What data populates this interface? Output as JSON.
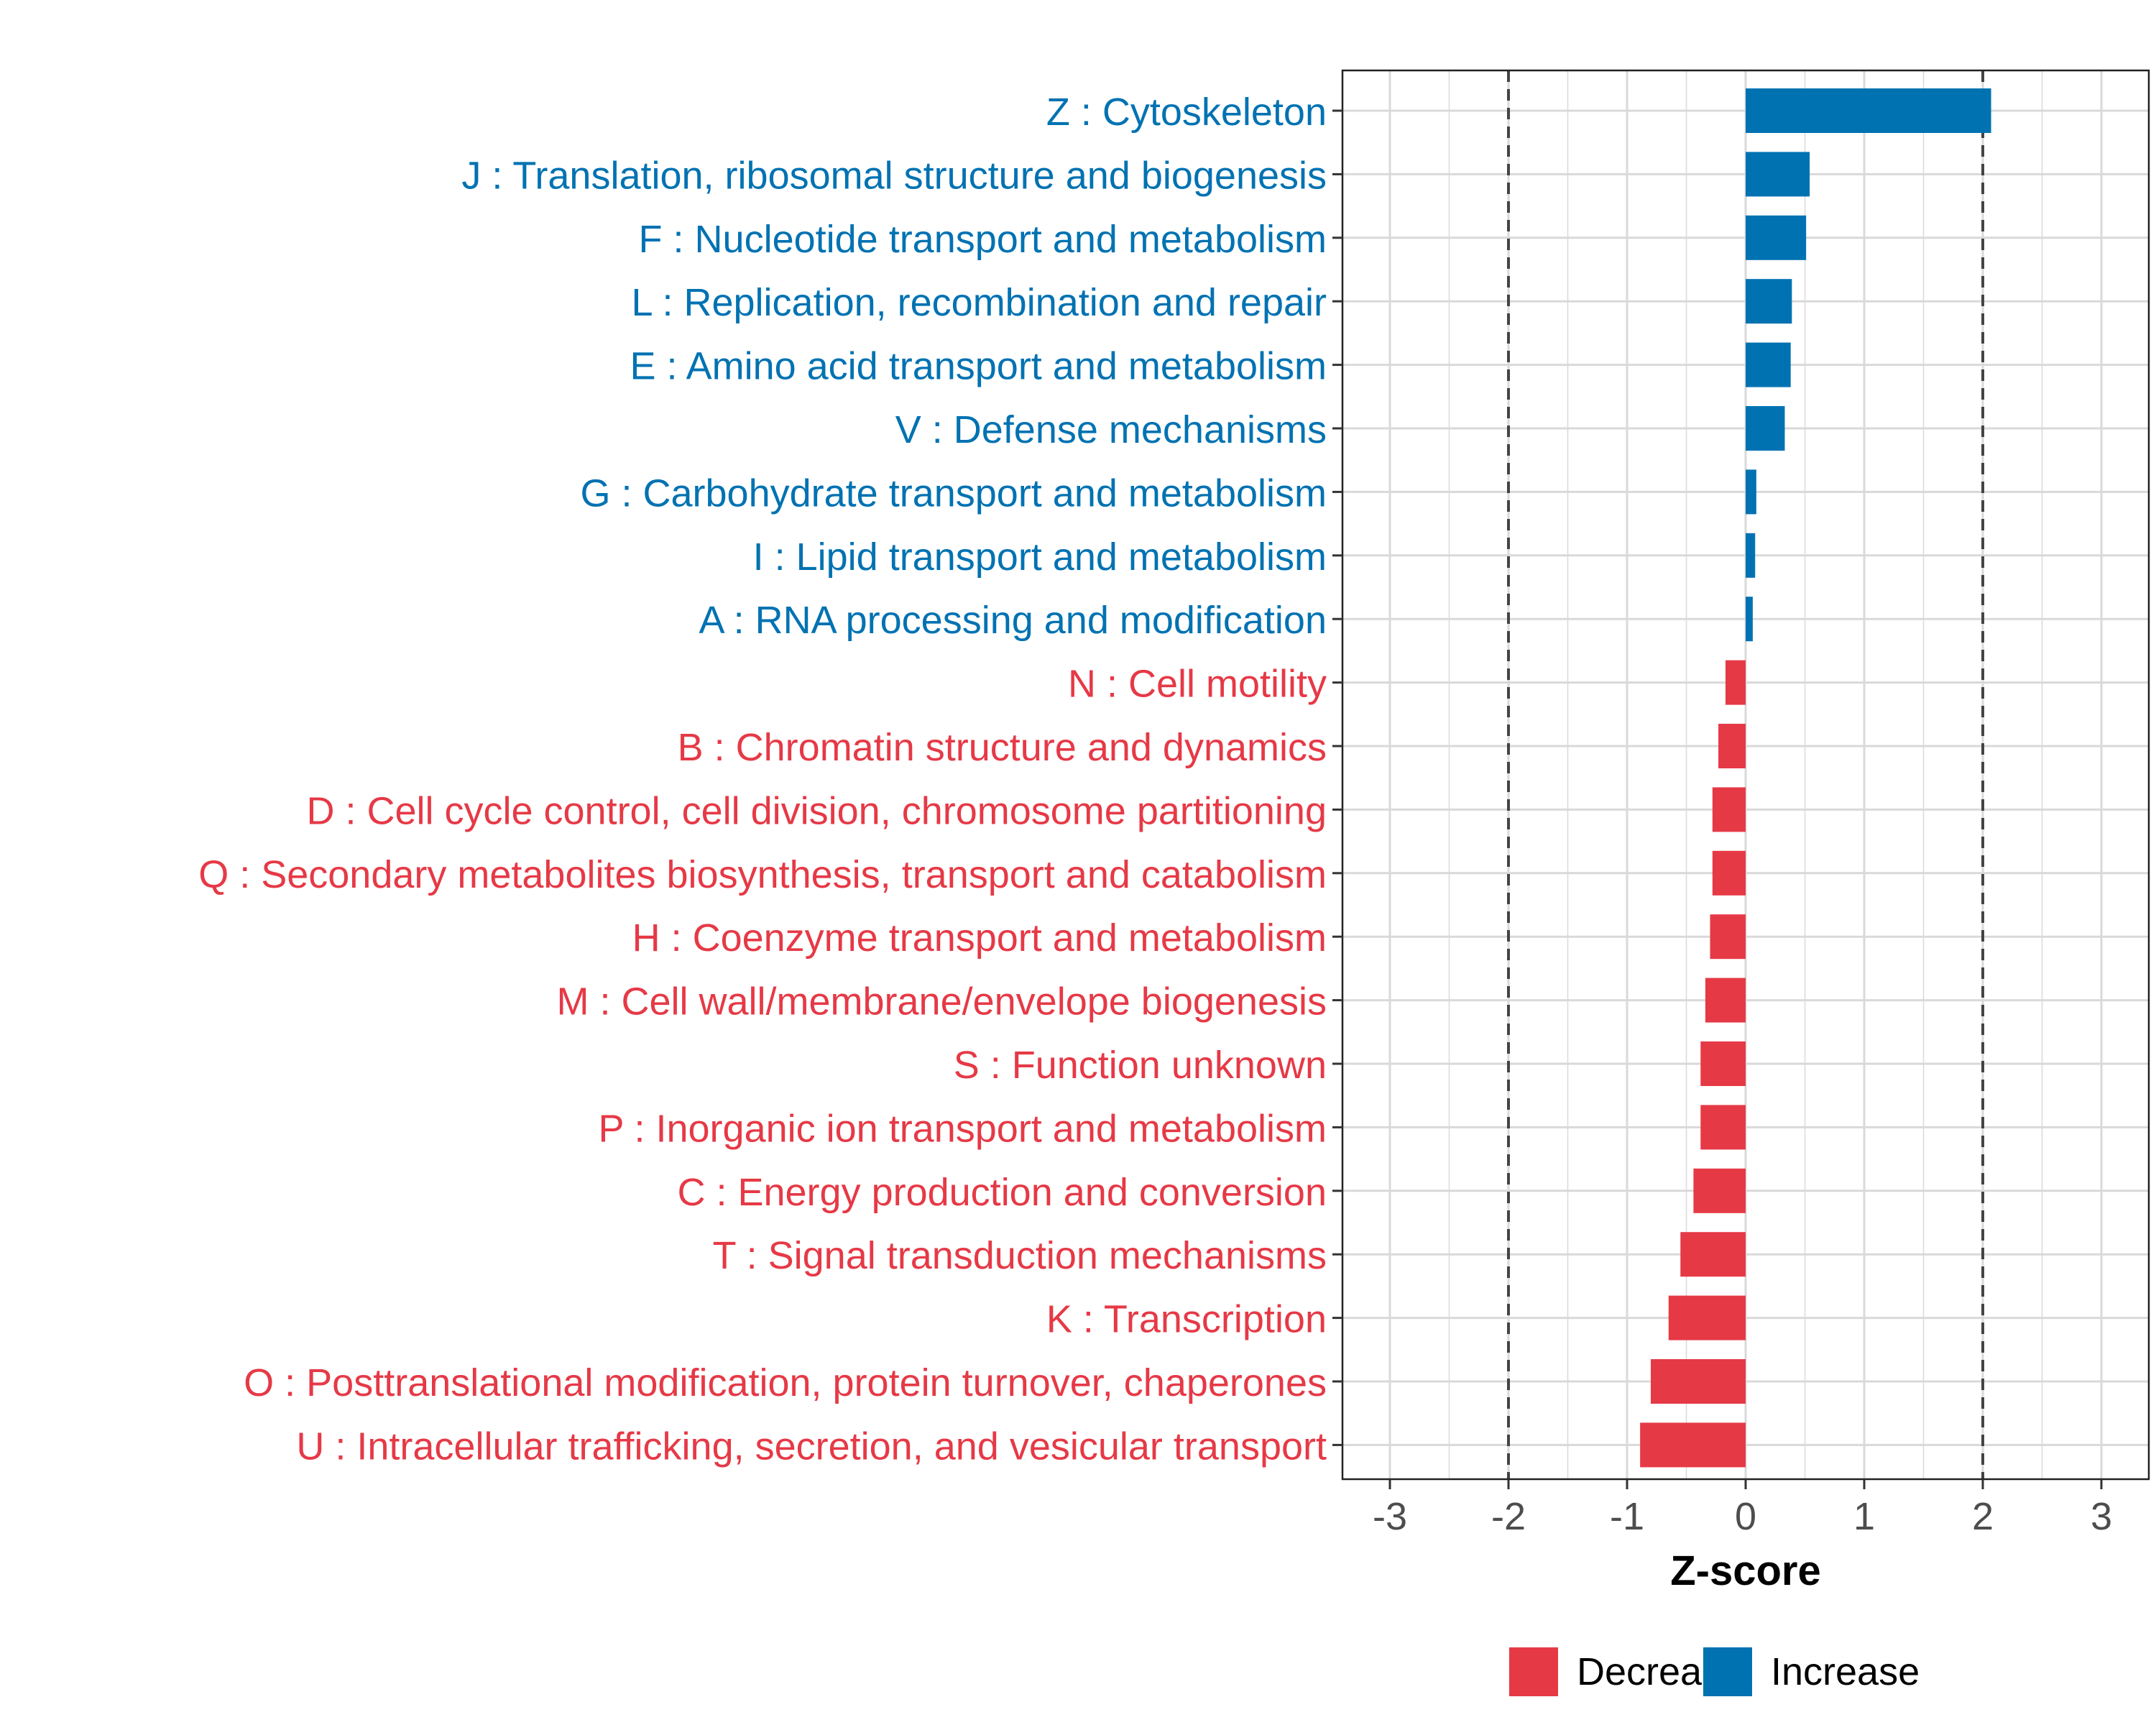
{
  "chart_data": {
    "type": "bar",
    "orientation": "horizontal",
    "title": "",
    "xlabel": "Z-score",
    "ylabel": "",
    "xlim": [
      -3.4,
      3.4
    ],
    "x_ticks": [
      -3,
      -2,
      -1,
      0,
      1,
      2,
      3
    ],
    "x_tick_labels": [
      "-3",
      "-2",
      "-1",
      "0",
      "1",
      "2",
      "3"
    ],
    "reference_lines": [
      -2,
      2
    ],
    "grid": true,
    "colors": {
      "Decrease": "#E63946",
      "Increase": "#0072B2"
    },
    "legend": {
      "position": "bottom",
      "entries": [
        {
          "label": "Decrease",
          "color": "#E63946"
        },
        {
          "label": "Increase",
          "color": "#0072B2"
        }
      ]
    },
    "categories": [
      {
        "label": "Z : Cytoskeleton",
        "value": 2.07,
        "group": "Increase"
      },
      {
        "label": "J : Translation, ribosomal structure and biogenesis",
        "value": 0.54,
        "group": "Increase"
      },
      {
        "label": "F : Nucleotide transport and metabolism",
        "value": 0.51,
        "group": "Increase"
      },
      {
        "label": "L : Replication, recombination and repair",
        "value": 0.39,
        "group": "Increase"
      },
      {
        "label": "E : Amino acid transport and metabolism",
        "value": 0.38,
        "group": "Increase"
      },
      {
        "label": "V : Defense mechanisms",
        "value": 0.33,
        "group": "Increase"
      },
      {
        "label": "G : Carbohydrate transport and metabolism",
        "value": 0.09,
        "group": "Increase"
      },
      {
        "label": "I : Lipid transport and metabolism",
        "value": 0.08,
        "group": "Increase"
      },
      {
        "label": "A : RNA processing and modification",
        "value": 0.06,
        "group": "Increase"
      },
      {
        "label": "N : Cell motility",
        "value": -0.17,
        "group": "Decrease"
      },
      {
        "label": "B : Chromatin structure and dynamics",
        "value": -0.23,
        "group": "Decrease"
      },
      {
        "label": "D : Cell cycle control, cell division, chromosome partitioning",
        "value": -0.28,
        "group": "Decrease"
      },
      {
        "label": "Q : Secondary metabolites biosynthesis, transport and catabolism",
        "value": -0.28,
        "group": "Decrease"
      },
      {
        "label": "H : Coenzyme transport and metabolism",
        "value": -0.3,
        "group": "Decrease"
      },
      {
        "label": "M : Cell wall/membrane/envelope biogenesis",
        "value": -0.34,
        "group": "Decrease"
      },
      {
        "label": "S : Function unknown",
        "value": -0.38,
        "group": "Decrease"
      },
      {
        "label": "P : Inorganic ion transport and metabolism",
        "value": -0.38,
        "group": "Decrease"
      },
      {
        "label": "C : Energy production and conversion",
        "value": -0.44,
        "group": "Decrease"
      },
      {
        "label": "T : Signal transduction mechanisms",
        "value": -0.55,
        "group": "Decrease"
      },
      {
        "label": "K : Transcription",
        "value": -0.65,
        "group": "Decrease"
      },
      {
        "label": "O : Posttranslational modification, protein turnover, chaperones",
        "value": -0.8,
        "group": "Decrease"
      },
      {
        "label": "U : Intracellular trafficking, secretion, and vesicular transport",
        "value": -0.89,
        "group": "Decrease"
      }
    ]
  }
}
